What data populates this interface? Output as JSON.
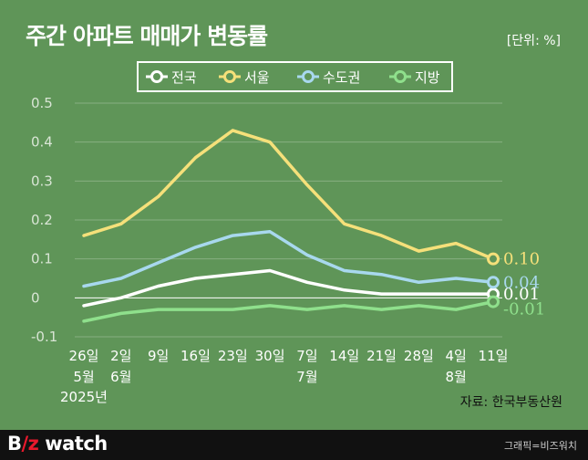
{
  "title": "주간 아파트 매매가 변동률",
  "unit": "[단위: %]",
  "source": "자료: 한국부동산원",
  "footer": {
    "logo_b": "B",
    "logo_z": "/z",
    "logo_rest": " watch",
    "credit": "그래픽=비즈워치"
  },
  "chart_data": {
    "type": "line",
    "title": "주간 아파트 매매가 변동률",
    "ylim": [
      -0.1,
      0.5
    ],
    "yticks": [
      "0.5",
      "0.4",
      "0.3",
      "0.2",
      "0.1",
      "0",
      "-0.1"
    ],
    "ytick_values": [
      0.5,
      0.4,
      0.3,
      0.2,
      0.1,
      0,
      -0.1
    ],
    "categories": [
      "26일",
      "2일",
      "9일",
      "16일",
      "23일",
      "30일",
      "7일",
      "14일",
      "21일",
      "28일",
      "4일",
      "11일"
    ],
    "month_labels": [
      {
        "index": 0,
        "label": "5월"
      },
      {
        "index": 1,
        "label": "6월"
      },
      {
        "index": 6,
        "label": "7월"
      },
      {
        "index": 10,
        "label": "8월"
      }
    ],
    "year_label": "2025년",
    "legend_position": "top",
    "series": [
      {
        "name": "전국",
        "color": "#ffffff",
        "values": [
          -0.02,
          0.0,
          0.03,
          0.05,
          0.06,
          0.07,
          0.04,
          0.02,
          0.01,
          0.01,
          0.01,
          0.01
        ],
        "end_label": "0.01"
      },
      {
        "name": "서울",
        "color": "#f5e07a",
        "values": [
          0.16,
          0.19,
          0.26,
          0.36,
          0.43,
          0.4,
          0.29,
          0.19,
          0.16,
          0.12,
          0.14,
          0.1
        ],
        "end_label": "0.10"
      },
      {
        "name": "수도권",
        "color": "#a8d8ee",
        "values": [
          0.03,
          0.05,
          0.09,
          0.13,
          0.16,
          0.17,
          0.11,
          0.07,
          0.06,
          0.04,
          0.05,
          0.04
        ],
        "end_label": "0.04"
      },
      {
        "name": "지방",
        "color": "#8fe08c",
        "values": [
          -0.06,
          -0.04,
          -0.03,
          -0.03,
          -0.03,
          -0.02,
          -0.03,
          -0.02,
          -0.03,
          -0.02,
          -0.03,
          -0.01
        ],
        "end_label": "-0.01"
      }
    ]
  }
}
